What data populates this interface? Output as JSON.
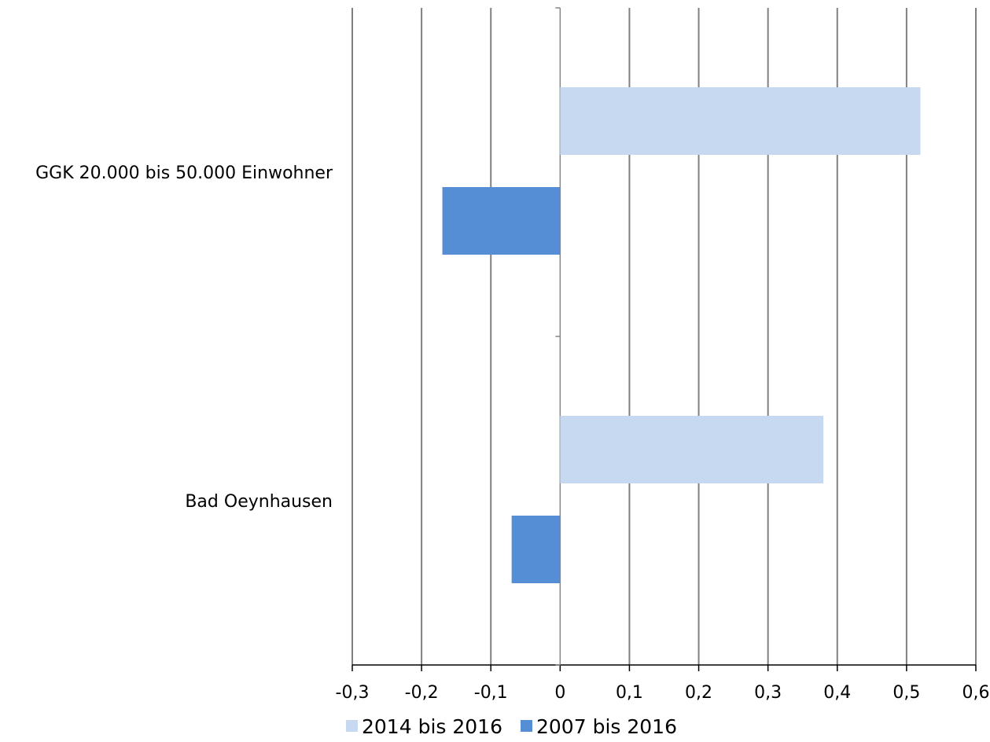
{
  "chart_data": {
    "type": "bar",
    "orientation": "horizontal",
    "categories": [
      "GGK 20.000 bis 50.000 Einwohner",
      "Bad Oeynhausen"
    ],
    "series": [
      {
        "name": "2014 bis 2016",
        "color": "#c6d9f1",
        "values": [
          0.52,
          0.38
        ]
      },
      {
        "name": "2007 bis 2016",
        "color": "#558ed5",
        "values": [
          -0.17,
          -0.07
        ]
      }
    ],
    "xlim": [
      -0.3,
      0.6
    ],
    "xticks": [
      -0.3,
      -0.2,
      -0.1,
      0,
      0.1,
      0.2,
      0.3,
      0.4,
      0.5,
      0.6
    ],
    "xtick_labels": [
      "-0,3",
      "-0,2",
      "-0,1",
      "0",
      "0,1",
      "0,2",
      "0,3",
      "0,4",
      "0,5",
      "0,6"
    ],
    "grid": "vertical",
    "gridline_color": "#808080",
    "legend": "bottom",
    "title": "",
    "xlabel": "",
    "ylabel": ""
  }
}
